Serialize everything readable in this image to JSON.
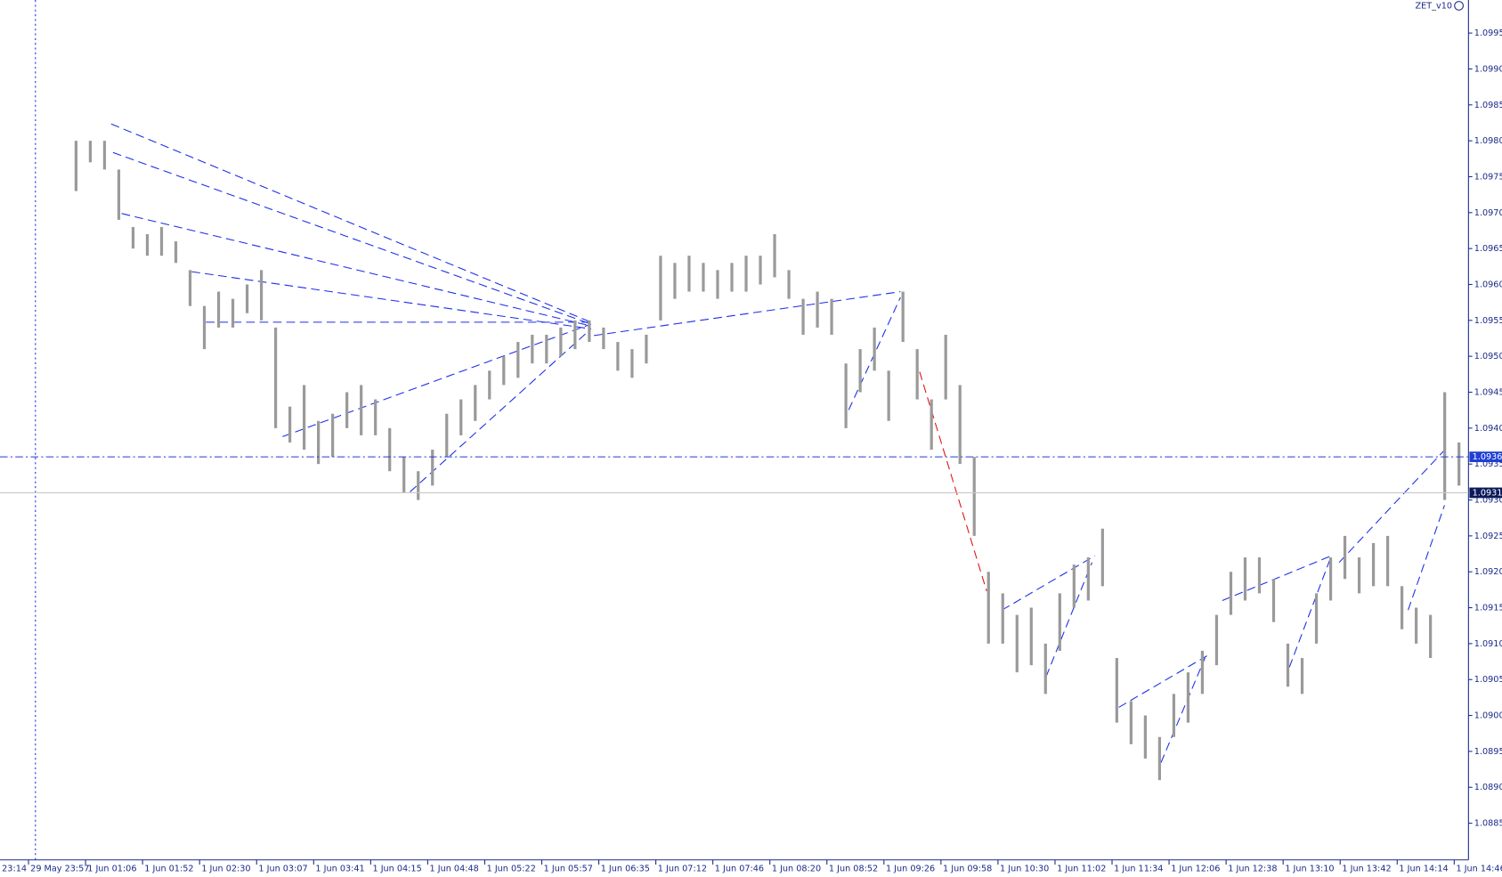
{
  "chart_data": {
    "type": "range-bar",
    "indicator": "ZET_v10",
    "color": "#9a9a9a",
    "x": [
      44,
      50,
      56,
      62,
      68,
      74,
      80,
      86,
      92,
      98,
      104,
      110,
      116,
      122,
      128,
      134,
      140,
      146,
      152,
      158,
      164,
      170,
      176,
      182,
      188,
      194,
      200,
      206,
      212,
      218,
      224,
      230,
      236,
      242,
      248,
      254,
      260,
      266,
      272,
      278,
      284,
      290,
      296,
      302,
      308,
      314,
      320,
      326,
      332,
      338,
      344,
      350,
      356,
      362,
      368,
      374,
      380,
      386,
      392,
      398,
      404,
      410,
      416,
      422,
      428,
      434,
      440,
      446,
      452,
      458,
      464,
      470,
      476,
      482,
      488,
      494,
      500,
      506,
      512,
      518,
      524,
      530,
      536,
      542,
      548,
      554,
      560,
      566,
      572,
      578,
      584,
      590,
      596,
      602,
      608,
      614,
      620,
      626
    ],
    "high": [
      1.098,
      1.098,
      1.098,
      1.0976,
      1.0968,
      1.0967,
      1.0968,
      1.0966,
      1.0962,
      1.0957,
      1.0959,
      1.0958,
      1.096,
      1.0962,
      1.0954,
      1.0943,
      1.0946,
      1.0941,
      1.0942,
      1.0945,
      1.0946,
      1.0944,
      1.094,
      1.0936,
      1.0934,
      1.0937,
      1.0942,
      1.0944,
      1.0946,
      1.0948,
      1.095,
      1.0952,
      1.0953,
      1.0953,
      1.0954,
      1.0955,
      1.0955,
      1.0954,
      1.0952,
      1.0951,
      1.0953,
      1.0964,
      1.0963,
      1.0964,
      1.0963,
      1.0962,
      1.0963,
      1.0964,
      1.0964,
      1.0967,
      1.0962,
      1.0958,
      1.0959,
      1.0958,
      1.0949,
      1.0951,
      1.0954,
      1.0948,
      1.0959,
      1.0951,
      1.0944,
      1.0953,
      1.0946,
      1.0936,
      1.092,
      1.0917,
      1.0914,
      1.0915,
      1.091,
      1.0917,
      1.0921,
      1.0922,
      1.0926,
      1.0908,
      1.0902,
      1.09,
      1.0897,
      1.0903,
      1.0906,
      1.0909,
      1.0914,
      1.092,
      1.0922,
      1.0922,
      1.0919,
      1.091,
      1.0908,
      1.0917,
      1.0922,
      1.0925,
      1.0922,
      1.0924,
      1.0925,
      1.0918,
      1.0915,
      1.0914,
      1.0945,
      1.0938
    ],
    "low": [
      1.0973,
      1.0977,
      1.0976,
      1.0969,
      1.0965,
      1.0964,
      1.0964,
      1.0963,
      1.0957,
      1.0951,
      1.0954,
      1.0954,
      1.0956,
      1.0955,
      1.094,
      1.0938,
      1.0937,
      1.0935,
      1.0936,
      1.094,
      1.0939,
      1.0939,
      1.0934,
      1.0931,
      1.093,
      1.0932,
      1.0936,
      1.0939,
      1.0941,
      1.0944,
      1.0946,
      1.0947,
      1.0949,
      1.0949,
      1.095,
      1.0951,
      1.0952,
      1.0951,
      1.0948,
      1.0947,
      1.0949,
      1.0955,
      1.0958,
      1.0959,
      1.0959,
      1.0958,
      1.0959,
      1.0959,
      1.096,
      1.0961,
      1.0958,
      1.0953,
      1.0954,
      1.0953,
      1.094,
      1.0945,
      1.0948,
      1.0941,
      1.0952,
      1.0944,
      1.0937,
      1.0944,
      1.0935,
      1.0925,
      1.091,
      1.091,
      1.0906,
      1.0907,
      1.0903,
      1.0909,
      1.0915,
      1.0916,
      1.0918,
      1.0899,
      1.0896,
      1.0894,
      1.0891,
      1.0897,
      1.0899,
      1.0903,
      1.0907,
      1.0914,
      1.0916,
      1.0917,
      1.0913,
      1.0904,
      1.0903,
      1.091,
      1.0916,
      1.0919,
      1.0917,
      1.0918,
      1.0918,
      1.0912,
      1.091,
      1.0908,
      1.093,
      1.0932
    ],
    "xlim": [
      12,
      630
    ],
    "ylim": [
      1.08799,
      1.09996
    ],
    "xticks": [
      {
        "value": 0,
        "label": "23:14"
      },
      {
        "value": 24,
        "label": "29 May 23:57"
      },
      {
        "value": 48,
        "label": "1 Jun 01:06"
      },
      {
        "value": 72,
        "label": "1 Jun 01:52"
      },
      {
        "value": 96,
        "label": "1 Jun 02:30"
      },
      {
        "value": 120,
        "label": "1 Jun 03:07"
      },
      {
        "value": 144,
        "label": "1 Jun 03:41"
      },
      {
        "value": 168,
        "label": "1 Jun 04:15"
      },
      {
        "value": 192,
        "label": "1 Jun 04:48"
      },
      {
        "value": 216,
        "label": "1 Jun 05:22"
      },
      {
        "value": 240,
        "label": "1 Jun 05:57"
      },
      {
        "value": 264,
        "label": "1 Jun 06:35"
      },
      {
        "value": 288,
        "label": "1 Jun 07:12"
      },
      {
        "value": 312,
        "label": "1 Jun 07:46"
      },
      {
        "value": 336,
        "label": "1 Jun 08:20"
      },
      {
        "value": 360,
        "label": "1 Jun 08:52"
      },
      {
        "value": 384,
        "label": "1 Jun 09:26"
      },
      {
        "value": 408,
        "label": "1 Jun 09:58"
      },
      {
        "value": 432,
        "label": "1 Jun 10:30"
      },
      {
        "value": 456,
        "label": "1 Jun 11:02"
      },
      {
        "value": 480,
        "label": "1 Jun 11:34"
      },
      {
        "value": 504,
        "label": "1 Jun 12:06"
      },
      {
        "value": 528,
        "label": "1 Jun 12:38"
      },
      {
        "value": 552,
        "label": "1 Jun 13:10"
      },
      {
        "value": 576,
        "label": "1 Jun 13:42"
      },
      {
        "value": 600,
        "label": "1 Jun 14:14"
      },
      {
        "value": 624,
        "label": "1 Jun 14:46"
      }
    ],
    "yticks": [
      {
        "value": 1.0885,
        "label": "1.0885"
      },
      {
        "value": 1.089,
        "label": "1.0890"
      },
      {
        "value": 1.0895,
        "label": "1.0895"
      },
      {
        "value": 1.09,
        "label": "1.0900"
      },
      {
        "value": 1.0905,
        "label": "1.0905"
      },
      {
        "value": 1.091,
        "label": "1.0910"
      },
      {
        "value": 1.0915,
        "label": "1.0915"
      },
      {
        "value": 1.092,
        "label": "1.0920"
      },
      {
        "value": 1.0925,
        "label": "1.0925"
      },
      {
        "value": 1.093,
        "label": "1.0930"
      },
      {
        "value": 1.0935,
        "label": "1.0935"
      },
      {
        "value": 1.094,
        "label": "1.0940"
      },
      {
        "value": 1.0945,
        "label": "1.0945"
      },
      {
        "value": 1.095,
        "label": "1.0950"
      },
      {
        "value": 1.0955,
        "label": "1.0955"
      },
      {
        "value": 1.096,
        "label": "1.0960"
      },
      {
        "value": 1.0965,
        "label": "1.0965"
      },
      {
        "value": 1.097,
        "label": "1.0970"
      },
      {
        "value": 1.0975,
        "label": "1.0975"
      },
      {
        "value": 1.098,
        "label": "1.0980"
      },
      {
        "value": 1.0985,
        "label": "1.0985"
      },
      {
        "value": 1.099,
        "label": "1.0990"
      },
      {
        "value": 1.0995,
        "label": "1.0995"
      }
    ],
    "price_lines": [
      {
        "value": 1.0931,
        "color": "#c8c8c8",
        "box": "#0b1a5a"
      },
      {
        "value": 1.0936,
        "color": "#1f3fd1",
        "box": "#1f3fd1"
      }
    ]
  }
}
